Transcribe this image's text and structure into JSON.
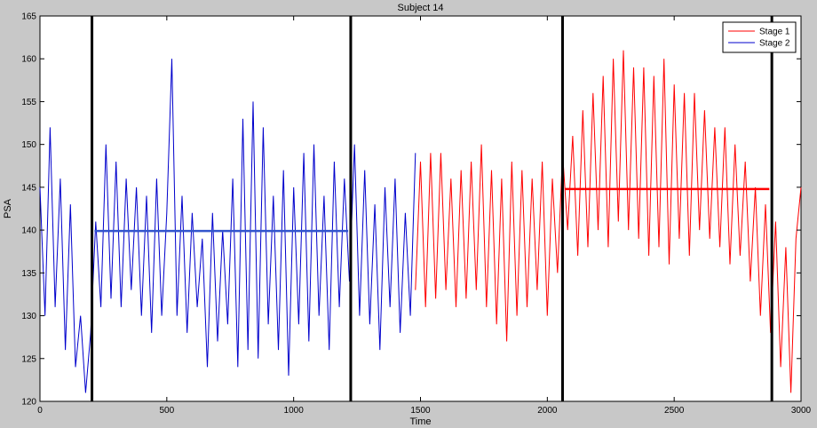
{
  "chart_data": {
    "type": "line",
    "title": "Subject 14",
    "xlabel": "Time",
    "ylabel": "PSA",
    "xlim": [
      0,
      3000
    ],
    "ylim": [
      120,
      165
    ],
    "xticks": [
      0,
      500,
      1000,
      1500,
      2000,
      2500,
      3000
    ],
    "yticks": [
      120,
      125,
      130,
      135,
      140,
      145,
      150,
      155,
      160,
      165
    ],
    "grid": false,
    "legend_position": "top-right",
    "colors": {
      "stage1": "#ff0000",
      "stage2": "#0000cc",
      "boundary": "#000000",
      "background": "#c8c8c8"
    },
    "series": [
      {
        "name": "Stage 1",
        "color": "#ff0000",
        "x": [
          1480,
          1500,
          1520,
          1540,
          1560,
          1580,
          1600,
          1620,
          1640,
          1660,
          1680,
          1700,
          1720,
          1740,
          1760,
          1780,
          1800,
          1820,
          1840,
          1860,
          1880,
          1900,
          1920,
          1940,
          1960,
          1980,
          2000,
          2020,
          2040,
          2060,
          2080,
          2100,
          2120,
          2140,
          2160,
          2180,
          2200,
          2220,
          2240,
          2260,
          2280,
          2300,
          2320,
          2340,
          2360,
          2380,
          2400,
          2420,
          2440,
          2460,
          2480,
          2500,
          2520,
          2540,
          2560,
          2580,
          2600,
          2620,
          2640,
          2660,
          2680,
          2700,
          2720,
          2740,
          2760,
          2780,
          2800,
          2820,
          2840,
          2860,
          2880,
          2900,
          2920,
          2940,
          2960,
          2980,
          3000
        ],
        "y": [
          133,
          148,
          131,
          149,
          132,
          149,
          133,
          146,
          131,
          147,
          132,
          148,
          133,
          150,
          131,
          147,
          129,
          146,
          127,
          148,
          130,
          147,
          131,
          146,
          133,
          148,
          130,
          146,
          135,
          149,
          140,
          151,
          137,
          154,
          138,
          156,
          140,
          158,
          138,
          160,
          141,
          161,
          140,
          159,
          139,
          159,
          137,
          158,
          138,
          160,
          136,
          157,
          139,
          156,
          137,
          156,
          140,
          154,
          139,
          152,
          138,
          152,
          136,
          150,
          137,
          148,
          134,
          145,
          130,
          143,
          128,
          141,
          124,
          138,
          121,
          139,
          145
        ]
      },
      {
        "name": "Stage 2",
        "color": "#0000cc",
        "x": [
          0,
          20,
          40,
          60,
          80,
          100,
          120,
          140,
          160,
          180,
          200,
          220,
          240,
          260,
          280,
          300,
          320,
          340,
          360,
          380,
          400,
          420,
          440,
          460,
          480,
          500,
          520,
          540,
          560,
          580,
          600,
          620,
          640,
          660,
          680,
          700,
          720,
          740,
          760,
          780,
          800,
          820,
          840,
          860,
          880,
          900,
          920,
          940,
          960,
          980,
          1000,
          1020,
          1040,
          1060,
          1080,
          1100,
          1120,
          1140,
          1160,
          1180,
          1200,
          1220,
          1240,
          1260,
          1280,
          1300,
          1320,
          1340,
          1360,
          1380,
          1400,
          1420,
          1440,
          1460,
          1480
        ],
        "y": [
          145,
          130,
          152,
          131,
          146,
          126,
          143,
          124,
          130,
          121,
          128,
          141,
          131,
          150,
          132,
          148,
          131,
          146,
          133,
          145,
          130,
          144,
          128,
          146,
          130,
          142,
          160,
          130,
          144,
          128,
          142,
          131,
          139,
          124,
          142,
          127,
          140,
          129,
          146,
          124,
          153,
          126,
          155,
          125,
          152,
          129,
          144,
          126,
          147,
          123,
          145,
          129,
          149,
          127,
          150,
          130,
          144,
          126,
          148,
          131,
          146,
          134,
          150,
          130,
          147,
          129,
          143,
          126,
          145,
          131,
          146,
          128,
          142,
          130,
          149
        ]
      }
    ],
    "boundaries_x": [
      205,
      1225,
      2060,
      2885
    ],
    "reference_lines": [
      {
        "x_start": 215,
        "x_end": 1215,
        "y": 139.9,
        "color": "#3355cc"
      },
      {
        "x_start": 2070,
        "x_end": 2875,
        "y": 144.8,
        "color": "#ff0000"
      }
    ]
  }
}
